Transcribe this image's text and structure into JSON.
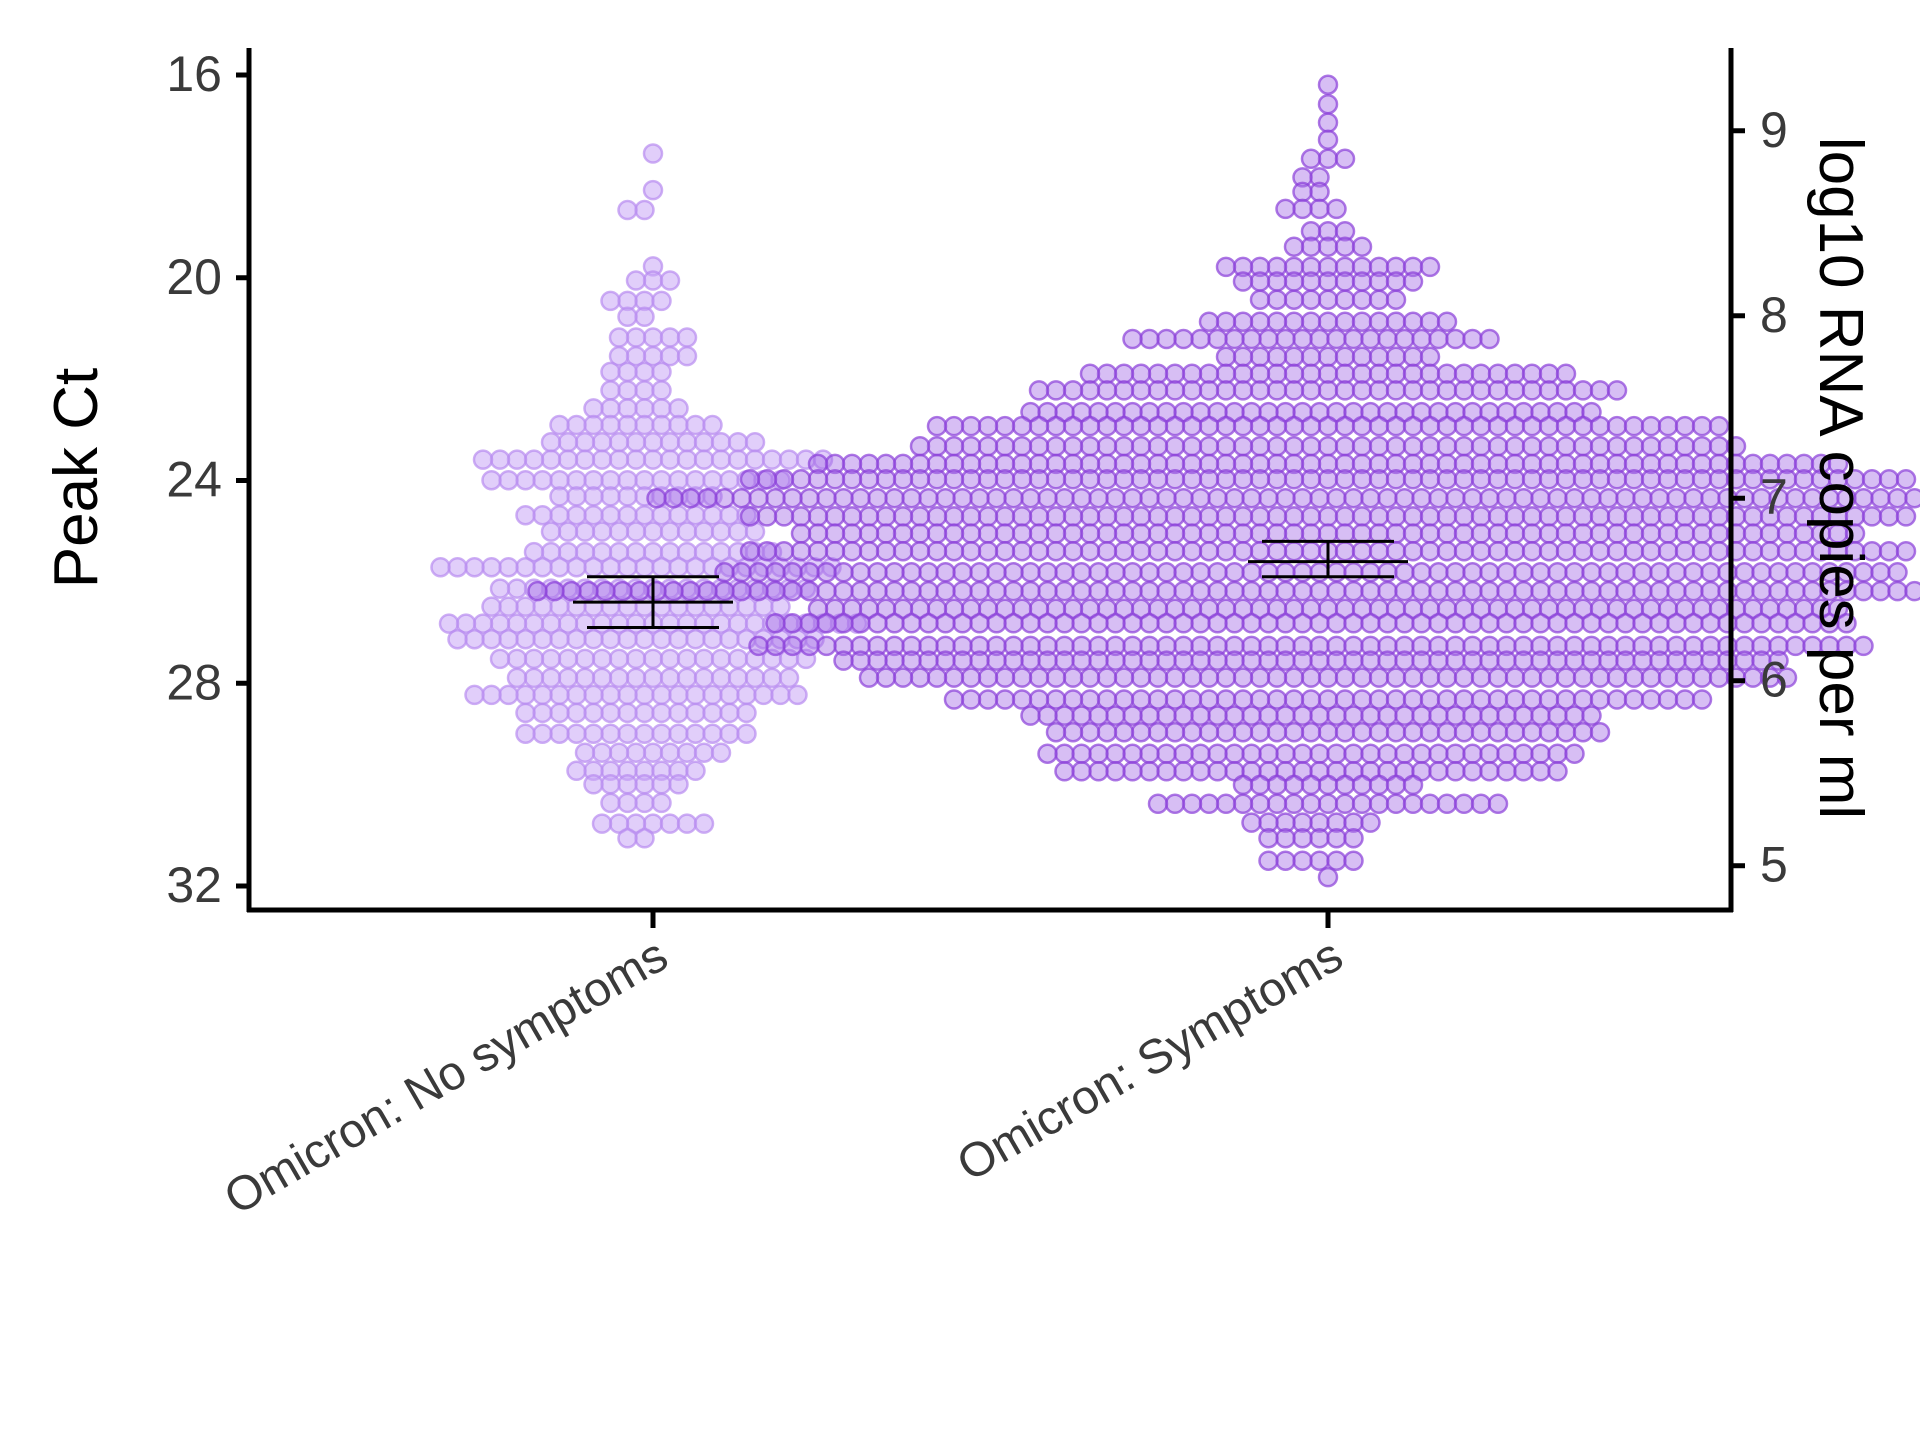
{
  "chart_data": {
    "type": "scatter",
    "style": "beeswarm",
    "title": "",
    "ylabel": "Peak Ct",
    "y2label": "log10 RNA copies per ml",
    "categories": [
      "Omicron: No symptoms",
      "Omicron: Symptoms"
    ],
    "ylim": [
      32.4,
      15.5
    ],
    "y_reversed": true,
    "yticks": [
      "16",
      "20",
      "24",
      "28",
      "32"
    ],
    "y2ticks": [
      "9",
      "8",
      "7",
      "6",
      "5"
    ],
    "y2_tick_positions_ct": [
      17.1,
      20.75,
      24.35,
      27.95,
      31.6
    ],
    "grid": false,
    "legend": "none",
    "colors": {
      "no_symptoms_fill": "#c9a6f5",
      "no_symptoms_stroke": "#b88cf0",
      "symptoms_fill": "#a66fe6",
      "symptoms_stroke": "#8a3fd8",
      "axis": "#000000",
      "tick_label": "#3a3a3a",
      "error_bar": "#000000"
    },
    "series": [
      {
        "category": "Omicron: No symptoms",
        "n_points_approx": 380,
        "min_ct": 17.6,
        "max_ct": 31.2,
        "mean_ct": 26.4,
        "ci_low": 25.9,
        "ci_high": 26.9,
        "y": [
          17.6,
          18.4,
          18.6,
          18.8,
          19.9,
          20.0,
          20.1,
          20.3,
          20.4,
          20.6,
          20.7,
          20.9,
          21.2,
          21.5,
          21.8,
          22.0,
          22.2,
          22.3,
          22.4,
          22.5,
          22.6,
          22.8,
          22.9,
          23.0,
          23.1,
          23.2,
          23.3,
          23.4,
          23.5,
          23.6,
          23.7,
          23.8,
          23.9,
          24.0,
          24.1,
          24.2,
          24.3,
          24.4,
          24.5,
          24.6,
          24.7,
          24.8,
          24.9,
          25.0,
          25.1,
          25.2,
          25.3,
          25.4,
          25.5,
          25.6,
          25.7,
          25.8,
          25.9,
          26.0,
          26.1,
          26.2,
          26.3,
          26.4,
          26.5,
          26.6,
          26.7,
          26.8,
          26.9,
          27.0,
          27.1,
          27.2,
          27.3,
          27.4,
          27.5,
          27.6,
          27.7,
          27.8,
          27.9,
          28.0,
          28.1,
          28.2,
          28.3,
          28.4,
          28.5,
          28.6,
          28.7,
          28.8,
          28.9,
          29.0,
          29.1,
          29.2,
          29.3,
          29.5,
          29.7,
          29.9,
          30.1,
          30.3,
          30.5,
          30.7,
          30.9,
          31.1,
          31.2
        ]
      },
      {
        "category": "Omicron: Symptoms",
        "n_points_approx": 1400,
        "min_ct": 16.2,
        "max_ct": 31.7,
        "mean_ct": 25.6,
        "ci_low": 25.2,
        "ci_high": 25.9,
        "y": [
          16.2,
          16.4,
          16.9,
          17.1,
          17.5,
          17.7,
          18.0,
          18.2,
          18.5,
          18.8,
          19.2,
          19.4,
          19.5,
          19.6,
          19.8,
          20.0,
          20.2,
          20.4,
          20.6,
          20.8,
          21.0,
          21.2,
          21.4,
          21.6,
          21.8,
          22.0,
          22.2,
          22.4,
          22.6,
          22.8,
          23.0,
          23.2,
          23.4,
          23.6,
          23.8,
          24.0,
          24.2,
          24.4,
          24.6,
          24.8,
          25.0,
          25.2,
          25.4,
          25.6,
          25.8,
          26.0,
          26.2,
          26.4,
          26.6,
          26.8,
          27.0,
          27.2,
          27.4,
          27.6,
          27.8,
          28.0,
          28.2,
          28.4,
          28.6,
          28.8,
          29.0,
          29.2,
          29.4,
          29.6,
          29.8,
          30.0,
          30.2,
          30.4,
          30.6,
          30.8,
          31.0,
          31.2,
          31.4,
          31.7
        ]
      }
    ]
  }
}
